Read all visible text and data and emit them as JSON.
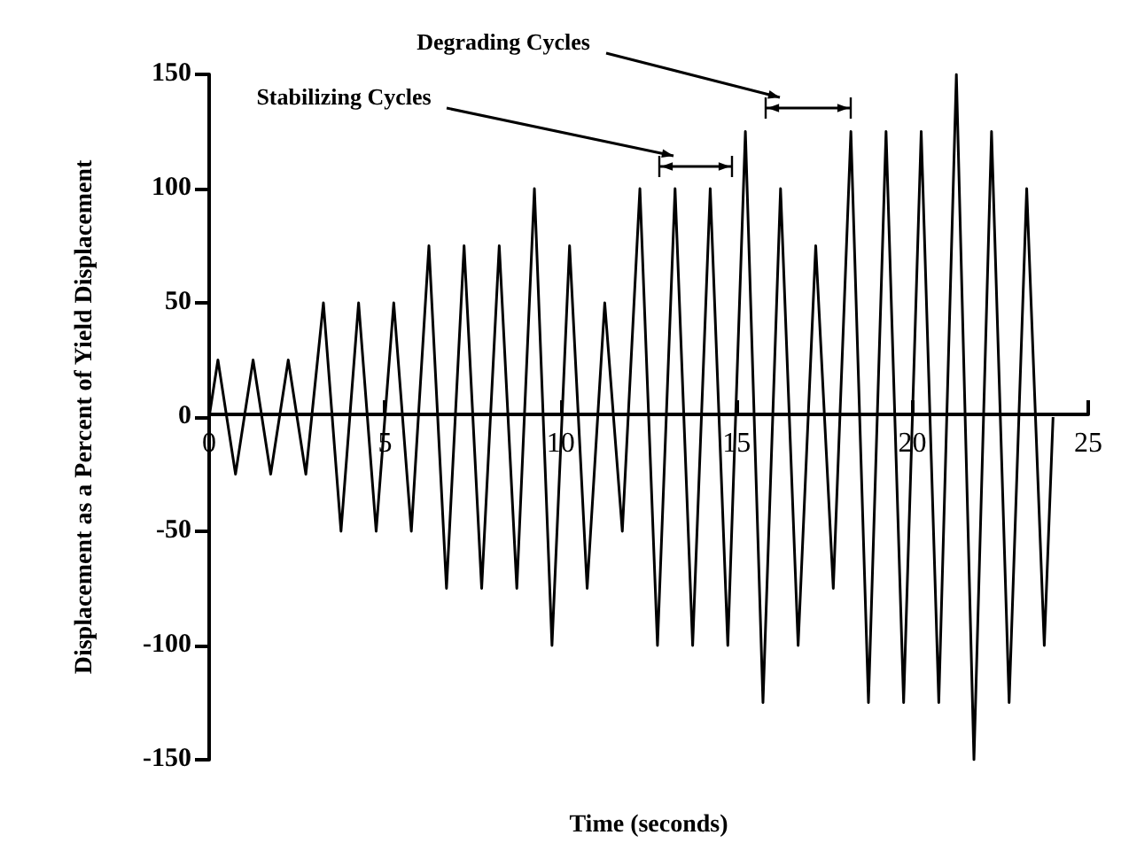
{
  "chart_data": {
    "type": "line",
    "xlabel": "Time (seconds)",
    "ylabel": "Displacement as a Percent of Yield Displacement",
    "x": [
      0,
      0.25,
      0.75,
      1.25,
      1.75,
      2.25,
      2.75,
      3.25,
      3.75,
      4.25,
      4.75,
      5.25,
      5.75,
      6.25,
      6.75,
      7.25,
      7.75,
      8.25,
      8.75,
      9.25,
      9.75,
      10.25,
      10.75,
      11.25,
      11.75,
      12.25,
      12.75,
      13.25,
      13.75,
      14.25,
      14.75,
      15.25,
      15.75,
      16.25,
      16.75,
      17.25,
      17.75,
      18.25,
      18.75,
      19.25,
      19.75,
      20.25,
      20.75,
      21.25,
      21.75,
      22.25,
      22.75,
      23.25,
      23.75,
      24
    ],
    "series": [
      {
        "color": "#000000",
        "values": [
          0,
          25,
          -25,
          25,
          -25,
          25,
          -25,
          50,
          -50,
          50,
          -50,
          50,
          -50,
          75,
          -75,
          75,
          -75,
          75,
          -75,
          100,
          -100,
          75,
          -75,
          50,
          -50,
          100,
          -100,
          100,
          -100,
          100,
          -100,
          125,
          -125,
          100,
          -100,
          75,
          -75,
          125,
          -125,
          125,
          -125,
          125,
          -125,
          150,
          -150,
          125,
          -125,
          100,
          -100,
          0
        ]
      }
    ],
    "xlim": [
      0,
      25
    ],
    "xticks": [
      0,
      5,
      10,
      15,
      20,
      25
    ],
    "ylim": [
      -150,
      150
    ],
    "yticks": [
      -150,
      -100,
      -50,
      0,
      50,
      100,
      150
    ],
    "grid": false,
    "marker": "none",
    "line_style": "solid",
    "annotations": [
      "Stabilizing Cycles",
      "Degrading Cycles"
    ]
  }
}
